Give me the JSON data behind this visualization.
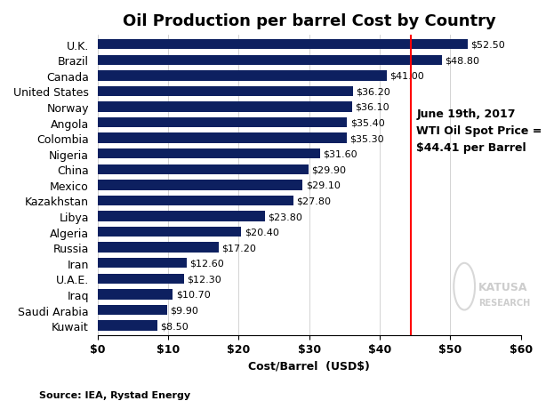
{
  "title": "Oil Production per barrel Cost by Country",
  "countries": [
    "Kuwait",
    "Saudi Arabia",
    "Iraq",
    "U.A.E.",
    "Iran",
    "Russia",
    "Algeria",
    "Libya",
    "Kazakhstan",
    "Mexico",
    "China",
    "Nigeria",
    "Colombia",
    "Angola",
    "Norway",
    "United States",
    "Canada",
    "Brazil",
    "U.K."
  ],
  "values": [
    8.5,
    9.9,
    10.7,
    12.3,
    12.6,
    17.2,
    20.4,
    23.8,
    27.8,
    29.1,
    29.9,
    31.6,
    35.3,
    35.4,
    36.1,
    36.2,
    41.0,
    48.8,
    52.5
  ],
  "labels": [
    "$8.50",
    "$9.90",
    "$10.70",
    "$12.30",
    "$12.60",
    "$17.20",
    "$20.40",
    "$23.80",
    "$27.80",
    "$29.10",
    "$29.90",
    "$31.60",
    "$35.30",
    "$35.40",
    "$36.10",
    "$36.20",
    "$41.00",
    "$48.80",
    "$52.50"
  ],
  "bar_color": "#0d2060",
  "vline_value": 44.41,
  "vline_color": "red",
  "vline_label_line1": "June 19th, 2017",
  "vline_label_line2": "WTI Oil Spot Price =",
  "vline_label_line3": "$44.41 per Barrel",
  "xlabel": "Cost/Barrel  (USD$)",
  "source": "Source: IEA, Rystad Energy",
  "xlim": [
    0,
    60
  ],
  "xticks": [
    0,
    10,
    20,
    30,
    40,
    50,
    60
  ],
  "xticklabels": [
    "$0",
    "$10",
    "$20",
    "$30",
    "$40",
    "$50",
    "$60"
  ],
  "background_color": "#ffffff",
  "title_fontsize": 13,
  "label_fontsize": 8,
  "axis_fontsize": 9,
  "source_fontsize": 8,
  "wti_fontsize": 9,
  "bar_height": 0.65
}
